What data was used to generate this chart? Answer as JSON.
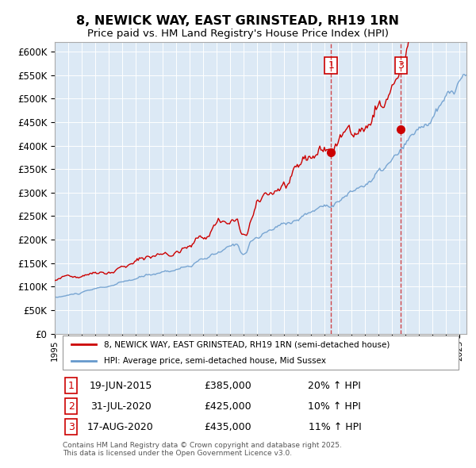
{
  "title": "8, NEWICK WAY, EAST GRINSTEAD, RH19 1RN",
  "subtitle": "Price paid vs. HM Land Registry's House Price Index (HPI)",
  "ylabel_ticks": [
    "£0",
    "£50K",
    "£100K",
    "£150K",
    "£200K",
    "£250K",
    "£300K",
    "£350K",
    "£400K",
    "£450K",
    "£500K",
    "£550K",
    "£600K"
  ],
  "ylim": [
    0,
    620000
  ],
  "xlim_start": 1995.0,
  "xlim_end": 2025.5,
  "background_color": "#dce9f5",
  "plot_bg_color": "#dce9f5",
  "red_line_color": "#cc0000",
  "blue_line_color": "#6699cc",
  "sale1_date": 2015.46,
  "sale1_price": 385000,
  "sale2_date": 2020.58,
  "sale2_price": 425000,
  "sale3_date": 2020.63,
  "sale3_price": 435000,
  "vline1_x": 2015.46,
  "vline3_x": 2020.65,
  "legend_line1": "8, NEWICK WAY, EAST GRINSTEAD, RH19 1RN (semi-detached house)",
  "legend_line2": "HPI: Average price, semi-detached house, Mid Sussex",
  "table_row1": [
    "1",
    "19-JUN-2015",
    "£385,000",
    "20% ↑ HPI"
  ],
  "table_row2": [
    "2",
    "31-JUL-2020",
    "£425,000",
    "10% ↑ HPI"
  ],
  "table_row3": [
    "3",
    "17-AUG-2020",
    "£435,000",
    "11% ↑ HPI"
  ],
  "footer": "Contains HM Land Registry data © Crown copyright and database right 2025.\nThis data is licensed under the Open Government Licence v3.0."
}
